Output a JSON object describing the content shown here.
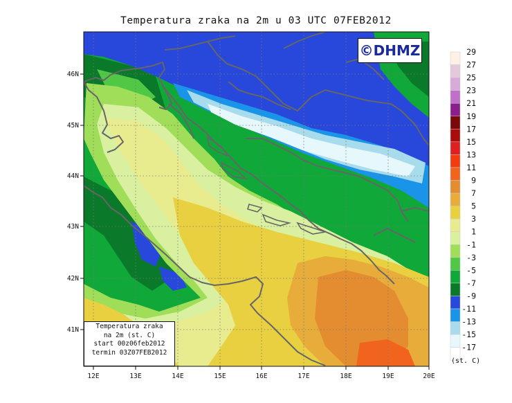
{
  "title": "Temperatura zraka na 2m u 03 UTC 07FEB2012",
  "logo": "©DHMZ",
  "infobox": {
    "line1": "Temperatura zraka",
    "line2": "na 2m (st. C)",
    "line3": "start 00z06feb2012",
    "line4": "termin 03Z07FEB2012"
  },
  "x_ticks": [
    "12E",
    "13E",
    "14E",
    "15E",
    "16E",
    "17E",
    "18E",
    "19E",
    "20E"
  ],
  "y_ticks": [
    "46N",
    "45N",
    "44N",
    "43N",
    "42N",
    "41N"
  ],
  "colorbar": {
    "unit": "(st. C)",
    "labels": [
      "29",
      "27",
      "25",
      "23",
      "21",
      "19",
      "17",
      "15",
      "13",
      "11",
      "9",
      "7",
      "5",
      "3",
      "1",
      "-1",
      "-3",
      "-5",
      "-7",
      "-9",
      "-11",
      "-13",
      "-15",
      "-17"
    ],
    "colors": [
      "#fdf0e4",
      "#e6c8dc",
      "#d8aad8",
      "#c070c8",
      "#8a1e8a",
      "#7a0a0a",
      "#a80c0c",
      "#e02020",
      "#f23c10",
      "#f0641e",
      "#e48c30",
      "#e8ac3a",
      "#e8d040",
      "#e8ec8e",
      "#d8f0a0",
      "#a0de5a",
      "#50c846",
      "#10a838",
      "#0a7a2a",
      "#2848dc",
      "#1a94e8",
      "#a8dcec",
      "#e6f8fc",
      "#ffffff"
    ]
  }
}
